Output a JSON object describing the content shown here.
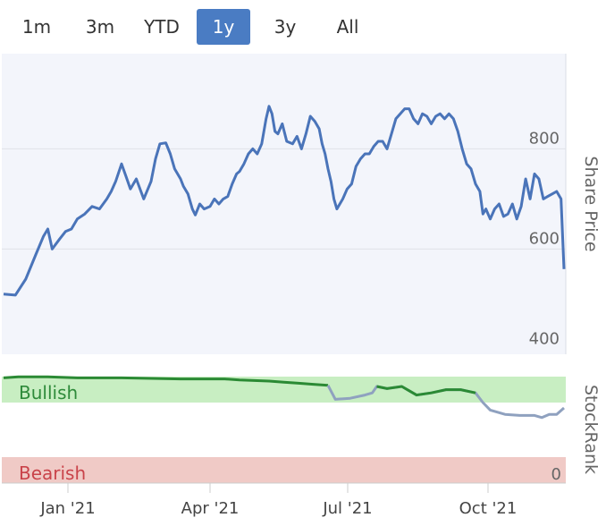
{
  "range_tabs": [
    {
      "label": "1m",
      "active": false
    },
    {
      "label": "3m",
      "active": false
    },
    {
      "label": "YTD",
      "active": false
    },
    {
      "label": "1y",
      "active": true
    },
    {
      "label": "3y",
      "active": false
    },
    {
      "label": "All",
      "active": false
    }
  ],
  "colors": {
    "accent": "#4a7cc3",
    "price_line": "#4a74b9",
    "bullish_band": "#c8eec2",
    "bearish_band": "#f0cac6",
    "bullish_text": "#2e8a3a",
    "bearish_text": "#c9434a",
    "rank_bull_line": "#2b8a34",
    "rank_line": "#8fa1bf"
  },
  "chart_data": [
    {
      "type": "line",
      "title": "",
      "ylabel": "Share Price",
      "x_ticks": [
        "Jan '21",
        "Apr '21",
        "Jul '21",
        "Oct '21"
      ],
      "y_ticks": [
        400,
        600,
        800
      ],
      "ylim": [
        390,
        990
      ],
      "grid": true,
      "series": [
        {
          "values": [
            [
              0,
              510
            ],
            [
              0.8,
              508
            ],
            [
              1.5,
              540
            ],
            [
              2.2,
              590
            ],
            [
              2.7,
              625
            ],
            [
              3,
              640
            ],
            [
              3.3,
              600
            ],
            [
              3.8,
              620
            ],
            [
              4.2,
              635
            ],
            [
              4.6,
              640
            ],
            [
              5,
              660
            ],
            [
              5.5,
              670
            ],
            [
              6,
              685
            ],
            [
              6.5,
              680
            ],
            [
              7,
              700
            ],
            [
              7.3,
              715
            ],
            [
              7.6,
              735
            ],
            [
              8,
              770
            ],
            [
              8.3,
              745
            ],
            [
              8.6,
              720
            ],
            [
              9,
              740
            ],
            [
              9.5,
              700
            ],
            [
              10,
              735
            ],
            [
              10.3,
              780
            ],
            [
              10.6,
              810
            ],
            [
              11,
              812
            ],
            [
              11.3,
              790
            ],
            [
              11.6,
              760
            ],
            [
              12,
              740
            ],
            [
              12.2,
              725
            ],
            [
              12.5,
              710
            ],
            [
              12.8,
              680
            ],
            [
              13,
              668
            ],
            [
              13.3,
              690
            ],
            [
              13.6,
              680
            ],
            [
              14,
              685
            ],
            [
              14.3,
              700
            ],
            [
              14.6,
              690
            ],
            [
              14.9,
              700
            ],
            [
              15.2,
              705
            ],
            [
              15.5,
              730
            ],
            [
              15.8,
              750
            ],
            [
              16,
              755
            ],
            [
              16.3,
              770
            ],
            [
              16.6,
              790
            ],
            [
              16.9,
              800
            ],
            [
              17.2,
              790
            ],
            [
              17.5,
              810
            ],
            [
              17.8,
              860
            ],
            [
              18,
              885
            ],
            [
              18.2,
              870
            ],
            [
              18.4,
              835
            ],
            [
              18.6,
              830
            ],
            [
              18.9,
              850
            ],
            [
              19.2,
              815
            ],
            [
              19.6,
              810
            ],
            [
              19.9,
              825
            ],
            [
              20.2,
              800
            ],
            [
              20.5,
              830
            ],
            [
              20.8,
              865
            ],
            [
              21.1,
              855
            ],
            [
              21.4,
              840
            ],
            [
              21.6,
              810
            ],
            [
              21.8,
              790
            ],
            [
              22,
              760
            ],
            [
              22.2,
              735
            ],
            [
              22.4,
              700
            ],
            [
              22.6,
              680
            ],
            [
              22.8,
              690
            ],
            [
              23,
              700
            ],
            [
              23.3,
              720
            ],
            [
              23.6,
              730
            ],
            [
              23.9,
              765
            ],
            [
              24.2,
              780
            ],
            [
              24.5,
              790
            ],
            [
              24.8,
              790
            ],
            [
              25.1,
              805
            ],
            [
              25.4,
              815
            ],
            [
              25.7,
              815
            ],
            [
              26,
              800
            ],
            [
              26.3,
              830
            ],
            [
              26.6,
              860
            ],
            [
              26.9,
              870
            ],
            [
              27.2,
              880
            ],
            [
              27.5,
              880
            ],
            [
              27.8,
              860
            ],
            [
              28.1,
              850
            ],
            [
              28.4,
              870
            ],
            [
              28.7,
              865
            ],
            [
              29,
              850
            ],
            [
              29.3,
              865
            ],
            [
              29.6,
              870
            ],
            [
              29.9,
              860
            ],
            [
              30.2,
              870
            ],
            [
              30.5,
              860
            ],
            [
              30.8,
              835
            ],
            [
              31.1,
              800
            ],
            [
              31.4,
              770
            ],
            [
              31.7,
              760
            ],
            [
              32,
              730
            ],
            [
              32.3,
              715
            ],
            [
              32.5,
              670
            ],
            [
              32.7,
              680
            ],
            [
              33,
              660
            ],
            [
              33.3,
              680
            ],
            [
              33.6,
              690
            ],
            [
              33.9,
              665
            ],
            [
              34.2,
              670
            ],
            [
              34.5,
              690
            ],
            [
              34.8,
              660
            ],
            [
              35.1,
              685
            ],
            [
              35.4,
              740
            ],
            [
              35.7,
              700
            ],
            [
              36,
              750
            ],
            [
              36.3,
              740
            ],
            [
              36.6,
              700
            ],
            [
              36.9,
              705
            ],
            [
              37.2,
              710
            ],
            [
              37.5,
              715
            ],
            [
              37.8,
              700
            ],
            [
              38,
              560
            ]
          ]
        }
      ]
    },
    {
      "type": "line",
      "ylabel": "StockRank",
      "bands": {
        "bullish": "Bullish",
        "bearish": "Bearish"
      },
      "y_ticks": [
        0
      ],
      "ylim": [
        0,
        100
      ],
      "series": [
        {
          "values": [
            [
              0,
              98
            ],
            [
              1,
              99
            ],
            [
              3,
              99
            ],
            [
              5,
              98
            ],
            [
              8,
              98
            ],
            [
              12,
              97
            ],
            [
              15,
              97
            ],
            [
              16,
              96
            ],
            [
              18,
              95
            ],
            [
              19,
              94
            ],
            [
              20,
              93
            ],
            [
              21,
              92
            ],
            [
              22,
              91
            ],
            [
              22.5,
              78
            ],
            [
              23.5,
              79
            ],
            [
              24.5,
              82
            ],
            [
              25,
              84
            ],
            [
              25.3,
              90
            ],
            [
              26,
              88
            ],
            [
              27,
              90
            ],
            [
              27.5,
              86
            ],
            [
              28,
              82
            ],
            [
              29,
              84
            ],
            [
              30,
              87
            ],
            [
              31,
              87
            ],
            [
              32,
              84
            ],
            [
              32.5,
              75
            ],
            [
              33,
              68
            ],
            [
              34,
              64
            ],
            [
              35,
              63
            ],
            [
              36,
              63
            ],
            [
              36.5,
              61
            ],
            [
              37,
              64
            ],
            [
              37.5,
              64
            ],
            [
              38,
              70
            ]
          ]
        }
      ]
    }
  ]
}
